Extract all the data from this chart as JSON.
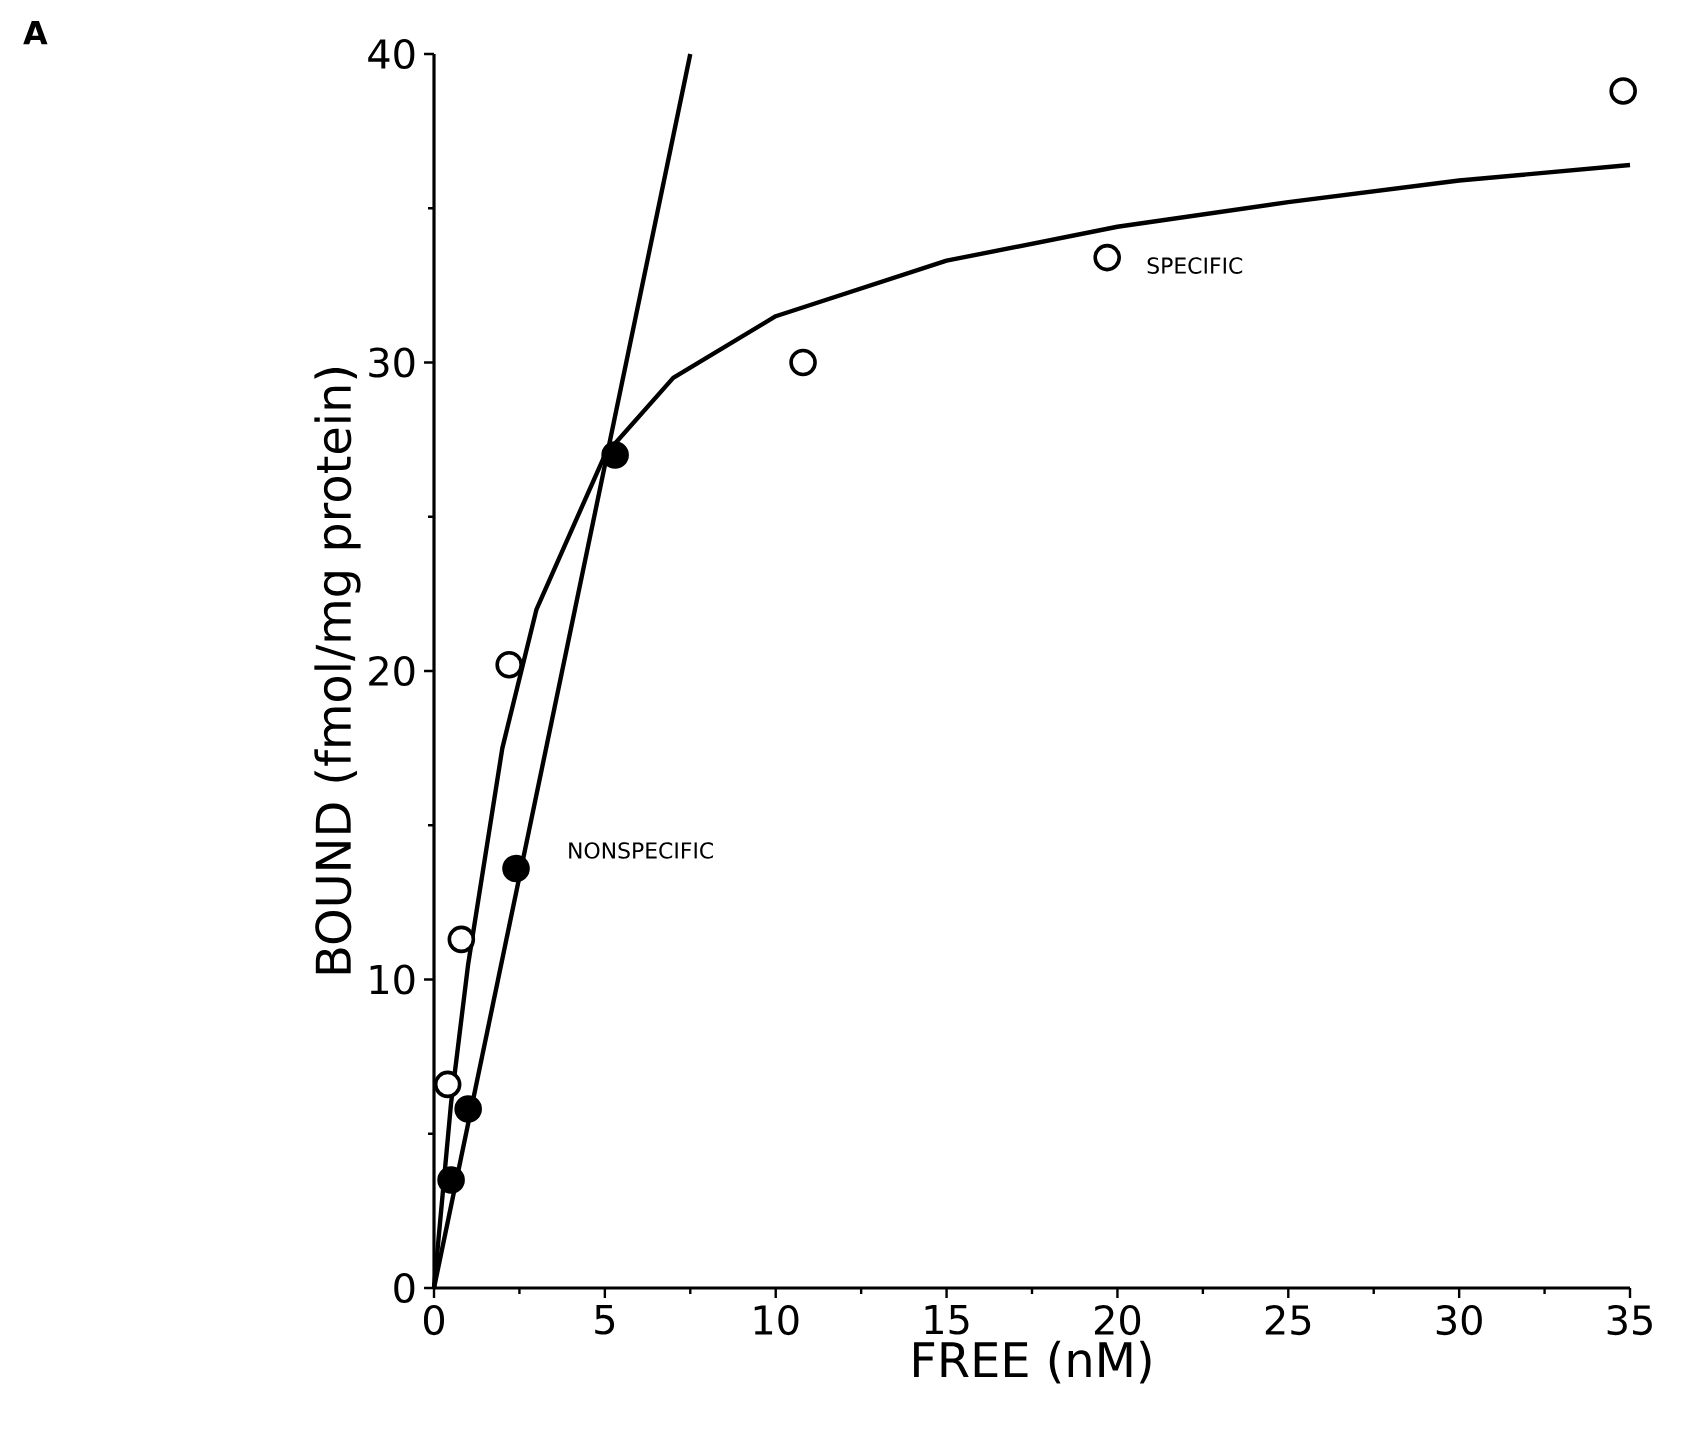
{
  "chart_data": {
    "type": "scatter",
    "xlabel": "FREE (nM)",
    "ylabel": "BOUND (fmol/mg protein)",
    "annotations": [
      "A"
    ],
    "xlim": [
      0,
      35
    ],
    "ylim": [
      0,
      40
    ],
    "xticks": [
      0,
      5,
      10,
      15,
      20,
      25,
      30,
      35
    ],
    "yticks": [
      0,
      10,
      20,
      30,
      40
    ],
    "grid": false,
    "legend": false,
    "series": [
      {
        "name": "SPECIFIC",
        "marker": "circle",
        "color": "#000000",
        "x": [
          0.4,
          0.8,
          2.2,
          10.8,
          19.7,
          34.8
        ],
        "values": [
          6.6,
          11.3,
          20.2,
          30.0,
          33.4,
          38.8
        ]
      },
      {
        "name": "NONSPECIFIC",
        "marker": "circle",
        "color": "#000000",
        "x": [
          0.5,
          1.0,
          2.4,
          5.3
        ],
        "values": [
          3.5,
          5.8,
          13.6,
          27.0
        ]
      },
      {
        "type": "line",
        "marker": "none",
        "line_style": "solid",
        "color": "#000000",
        "x": [
          0,
          0.5,
          1,
          2,
          3,
          5,
          7,
          10,
          15,
          20,
          25,
          30,
          35
        ],
        "values": [
          0,
          6,
          10.5,
          17.5,
          22,
          27,
          29.5,
          31.5,
          33.3,
          34.4,
          35.2,
          35.9,
          36.4
        ]
      },
      {
        "type": "line",
        "marker": "none",
        "line_style": "solid",
        "color": "#000000",
        "x": [
          0,
          7.5
        ],
        "values": [
          0,
          40
        ]
      }
    ]
  }
}
